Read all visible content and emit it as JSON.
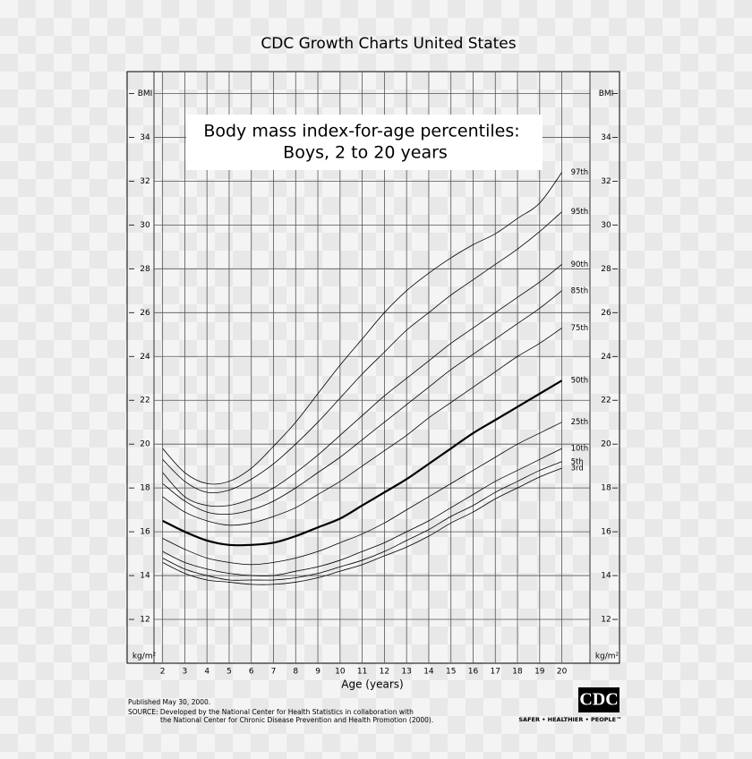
{
  "chart_data": {
    "type": "line",
    "title": "CDC Growth Charts United States",
    "subtitle": [
      "Body mass index-for-age percentiles:",
      "Boys, 2 to 20 years"
    ],
    "x_label": "Age (years)",
    "y_label": "kg/m²",
    "x": [
      2,
      3,
      4,
      5,
      6,
      7,
      8,
      9,
      10,
      11,
      12,
      13,
      14,
      15,
      16,
      17,
      18,
      19,
      20
    ],
    "xlim": [
      0.4,
      22.6
    ],
    "xticks": [
      2,
      3,
      4,
      5,
      6,
      7,
      8,
      9,
      10,
      11,
      12,
      13,
      14,
      15,
      16,
      17,
      18,
      19,
      20
    ],
    "ylim": [
      10,
      37
    ],
    "yticks": [
      12,
      14,
      16,
      18,
      20,
      22,
      24,
      26,
      28,
      30,
      32,
      34,
      {
        "value": 36,
        "label": "BMI"
      }
    ],
    "grid": true,
    "series": [
      {
        "name": "97th",
        "color": "#000000",
        "width": 0.8,
        "values": [
          19.8,
          18.7,
          18.2,
          18.3,
          18.9,
          19.9,
          21.0,
          22.3,
          23.6,
          24.8,
          26.0,
          27.0,
          27.8,
          28.5,
          29.1,
          29.6,
          30.3,
          31.0,
          32.4
        ]
      },
      {
        "name": "95th",
        "color": "#000000",
        "width": 0.8,
        "values": [
          19.3,
          18.3,
          17.8,
          17.9,
          18.4,
          19.1,
          20.0,
          21.0,
          22.1,
          23.2,
          24.2,
          25.2,
          26.0,
          26.8,
          27.5,
          28.2,
          28.9,
          29.7,
          30.6
        ]
      },
      {
        "name": "90th",
        "color": "#000000",
        "width": 0.8,
        "values": [
          18.7,
          17.6,
          17.2,
          17.2,
          17.5,
          18.0,
          18.7,
          19.5,
          20.4,
          21.3,
          22.2,
          23.0,
          23.8,
          24.6,
          25.3,
          26.0,
          26.7,
          27.4,
          28.2
        ]
      },
      {
        "name": "85th",
        "color": "#000000",
        "width": 0.8,
        "values": [
          18.2,
          17.4,
          16.9,
          16.8,
          17.0,
          17.4,
          18.0,
          18.7,
          19.4,
          20.2,
          21.0,
          21.8,
          22.6,
          23.4,
          24.1,
          24.8,
          25.5,
          26.2,
          27.0
        ]
      },
      {
        "name": "75th",
        "color": "#000000",
        "width": 0.8,
        "values": [
          17.6,
          16.9,
          16.5,
          16.3,
          16.4,
          16.7,
          17.1,
          17.7,
          18.3,
          19.0,
          19.7,
          20.4,
          21.2,
          21.9,
          22.6,
          23.3,
          24.0,
          24.6,
          25.3
        ]
      },
      {
        "name": "50th",
        "color": "#000000",
        "width": 2.2,
        "values": [
          16.5,
          16.0,
          15.6,
          15.4,
          15.4,
          15.5,
          15.8,
          16.2,
          16.6,
          17.2,
          17.8,
          18.4,
          19.1,
          19.8,
          20.5,
          21.1,
          21.7,
          22.3,
          22.9
        ]
      },
      {
        "name": "25th",
        "color": "#000000",
        "width": 0.8,
        "values": [
          15.7,
          15.2,
          14.8,
          14.6,
          14.5,
          14.6,
          14.8,
          15.1,
          15.5,
          15.9,
          16.4,
          17.0,
          17.6,
          18.2,
          18.8,
          19.4,
          20.0,
          20.5,
          21.0
        ]
      },
      {
        "name": "10th",
        "color": "#000000",
        "width": 0.8,
        "values": [
          15.1,
          14.6,
          14.3,
          14.1,
          14.0,
          14.0,
          14.2,
          14.4,
          14.7,
          15.1,
          15.5,
          16.0,
          16.5,
          17.1,
          17.7,
          18.3,
          18.8,
          19.3,
          19.8
        ]
      },
      {
        "name": "5th",
        "color": "#000000",
        "width": 0.8,
        "values": [
          14.8,
          14.3,
          14.0,
          13.8,
          13.8,
          13.8,
          13.9,
          14.1,
          14.4,
          14.7,
          15.1,
          15.6,
          16.1,
          16.7,
          17.2,
          17.8,
          18.3,
          18.8,
          19.2
        ]
      },
      {
        "name": "3rd",
        "color": "#000000",
        "width": 0.8,
        "values": [
          14.6,
          14.1,
          13.8,
          13.7,
          13.6,
          13.6,
          13.7,
          13.9,
          14.2,
          14.5,
          14.9,
          15.3,
          15.8,
          16.4,
          16.9,
          17.5,
          18.0,
          18.5,
          18.9
        ]
      }
    ]
  },
  "footer": {
    "published": "Published May 30, 2000.",
    "source": [
      "SOURCE: Developed by the National Center for Health Statistics in collaboration with",
      "the National Center for Chronic Disease Prevention and Health Promotion (2000)."
    ],
    "logo": "CDC",
    "tagline": "SAFER • HEALTHIER • PEOPLE™"
  }
}
